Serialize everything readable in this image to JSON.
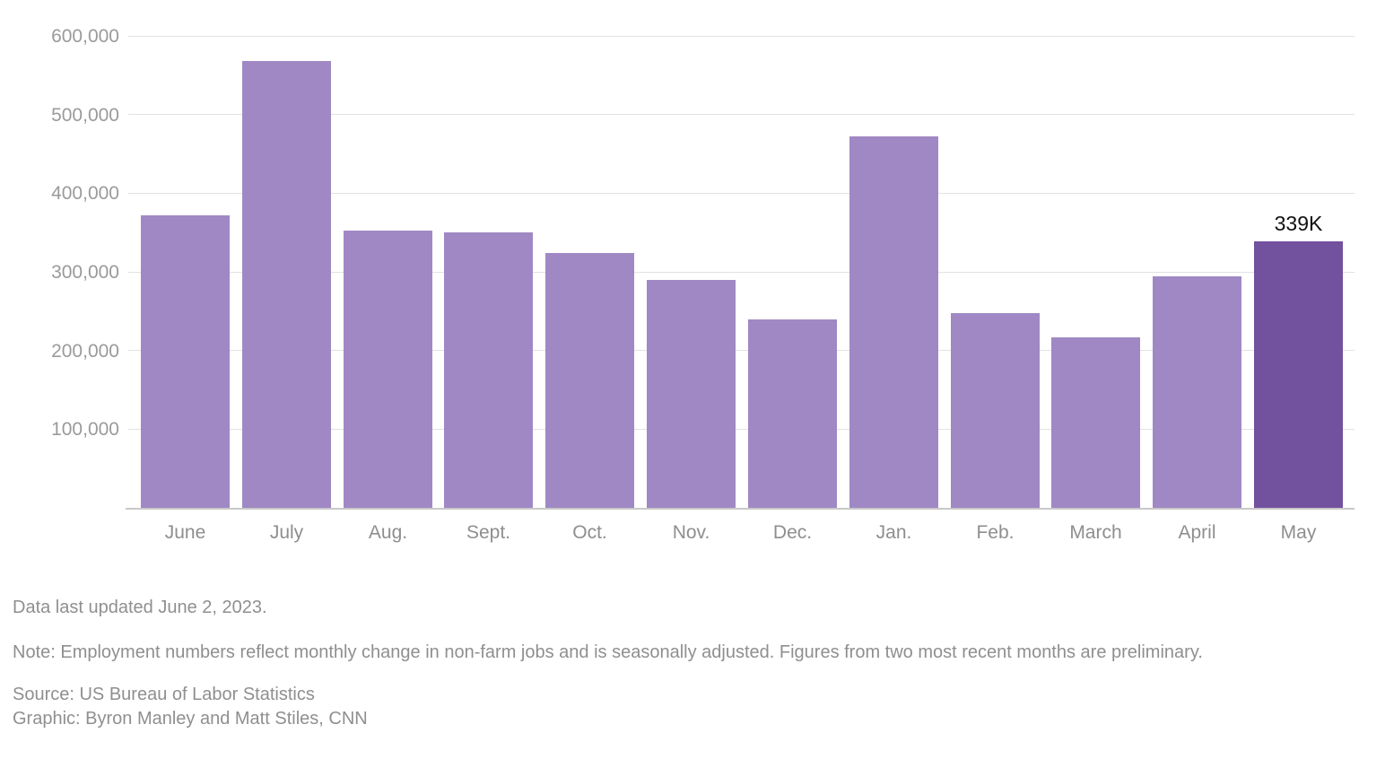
{
  "chart_data": {
    "type": "bar",
    "title": "",
    "xlabel": "",
    "ylabel": "",
    "categories": [
      "June",
      "July",
      "Aug.",
      "Sept.",
      "Oct.",
      "Nov.",
      "Dec.",
      "Jan.",
      "Feb.",
      "March",
      "April",
      "May"
    ],
    "values": [
      372000,
      568000,
      352000,
      350000,
      324000,
      290000,
      239000,
      472000,
      248000,
      217000,
      294000,
      339000
    ],
    "highlight_index": 11,
    "highlight_annotation": "339K",
    "ylim": [
      0,
      600000
    ],
    "grid": "horizontal",
    "legend": "none",
    "yticks": [
      {
        "value": 100000,
        "label": "100,000"
      },
      {
        "value": 200000,
        "label": "200,000"
      },
      {
        "value": 300000,
        "label": "300,000"
      },
      {
        "value": 400000,
        "label": "400,000"
      },
      {
        "value": 500000,
        "label": "500,000"
      },
      {
        "value": 600000,
        "label": "600,000"
      }
    ]
  },
  "colors": {
    "bar": "#a088c4",
    "bar_highlight": "#72519e",
    "gridline": "#e2e2e2",
    "baseline": "#c9c9c9",
    "axis_label": "#9a9a9a",
    "annotation": "#111111",
    "footer_text": "#8f8f8f",
    "background": "#ffffff"
  },
  "footer": {
    "updated": "Data last updated June 2, 2023.",
    "note": "Note: Employment numbers reflect monthly change in non-farm jobs and is seasonally adjusted. Figures from two most recent months are preliminary.",
    "source": "Source: US Bureau of Labor Statistics",
    "credit": "Graphic: Byron Manley and Matt Stiles, CNN"
  }
}
